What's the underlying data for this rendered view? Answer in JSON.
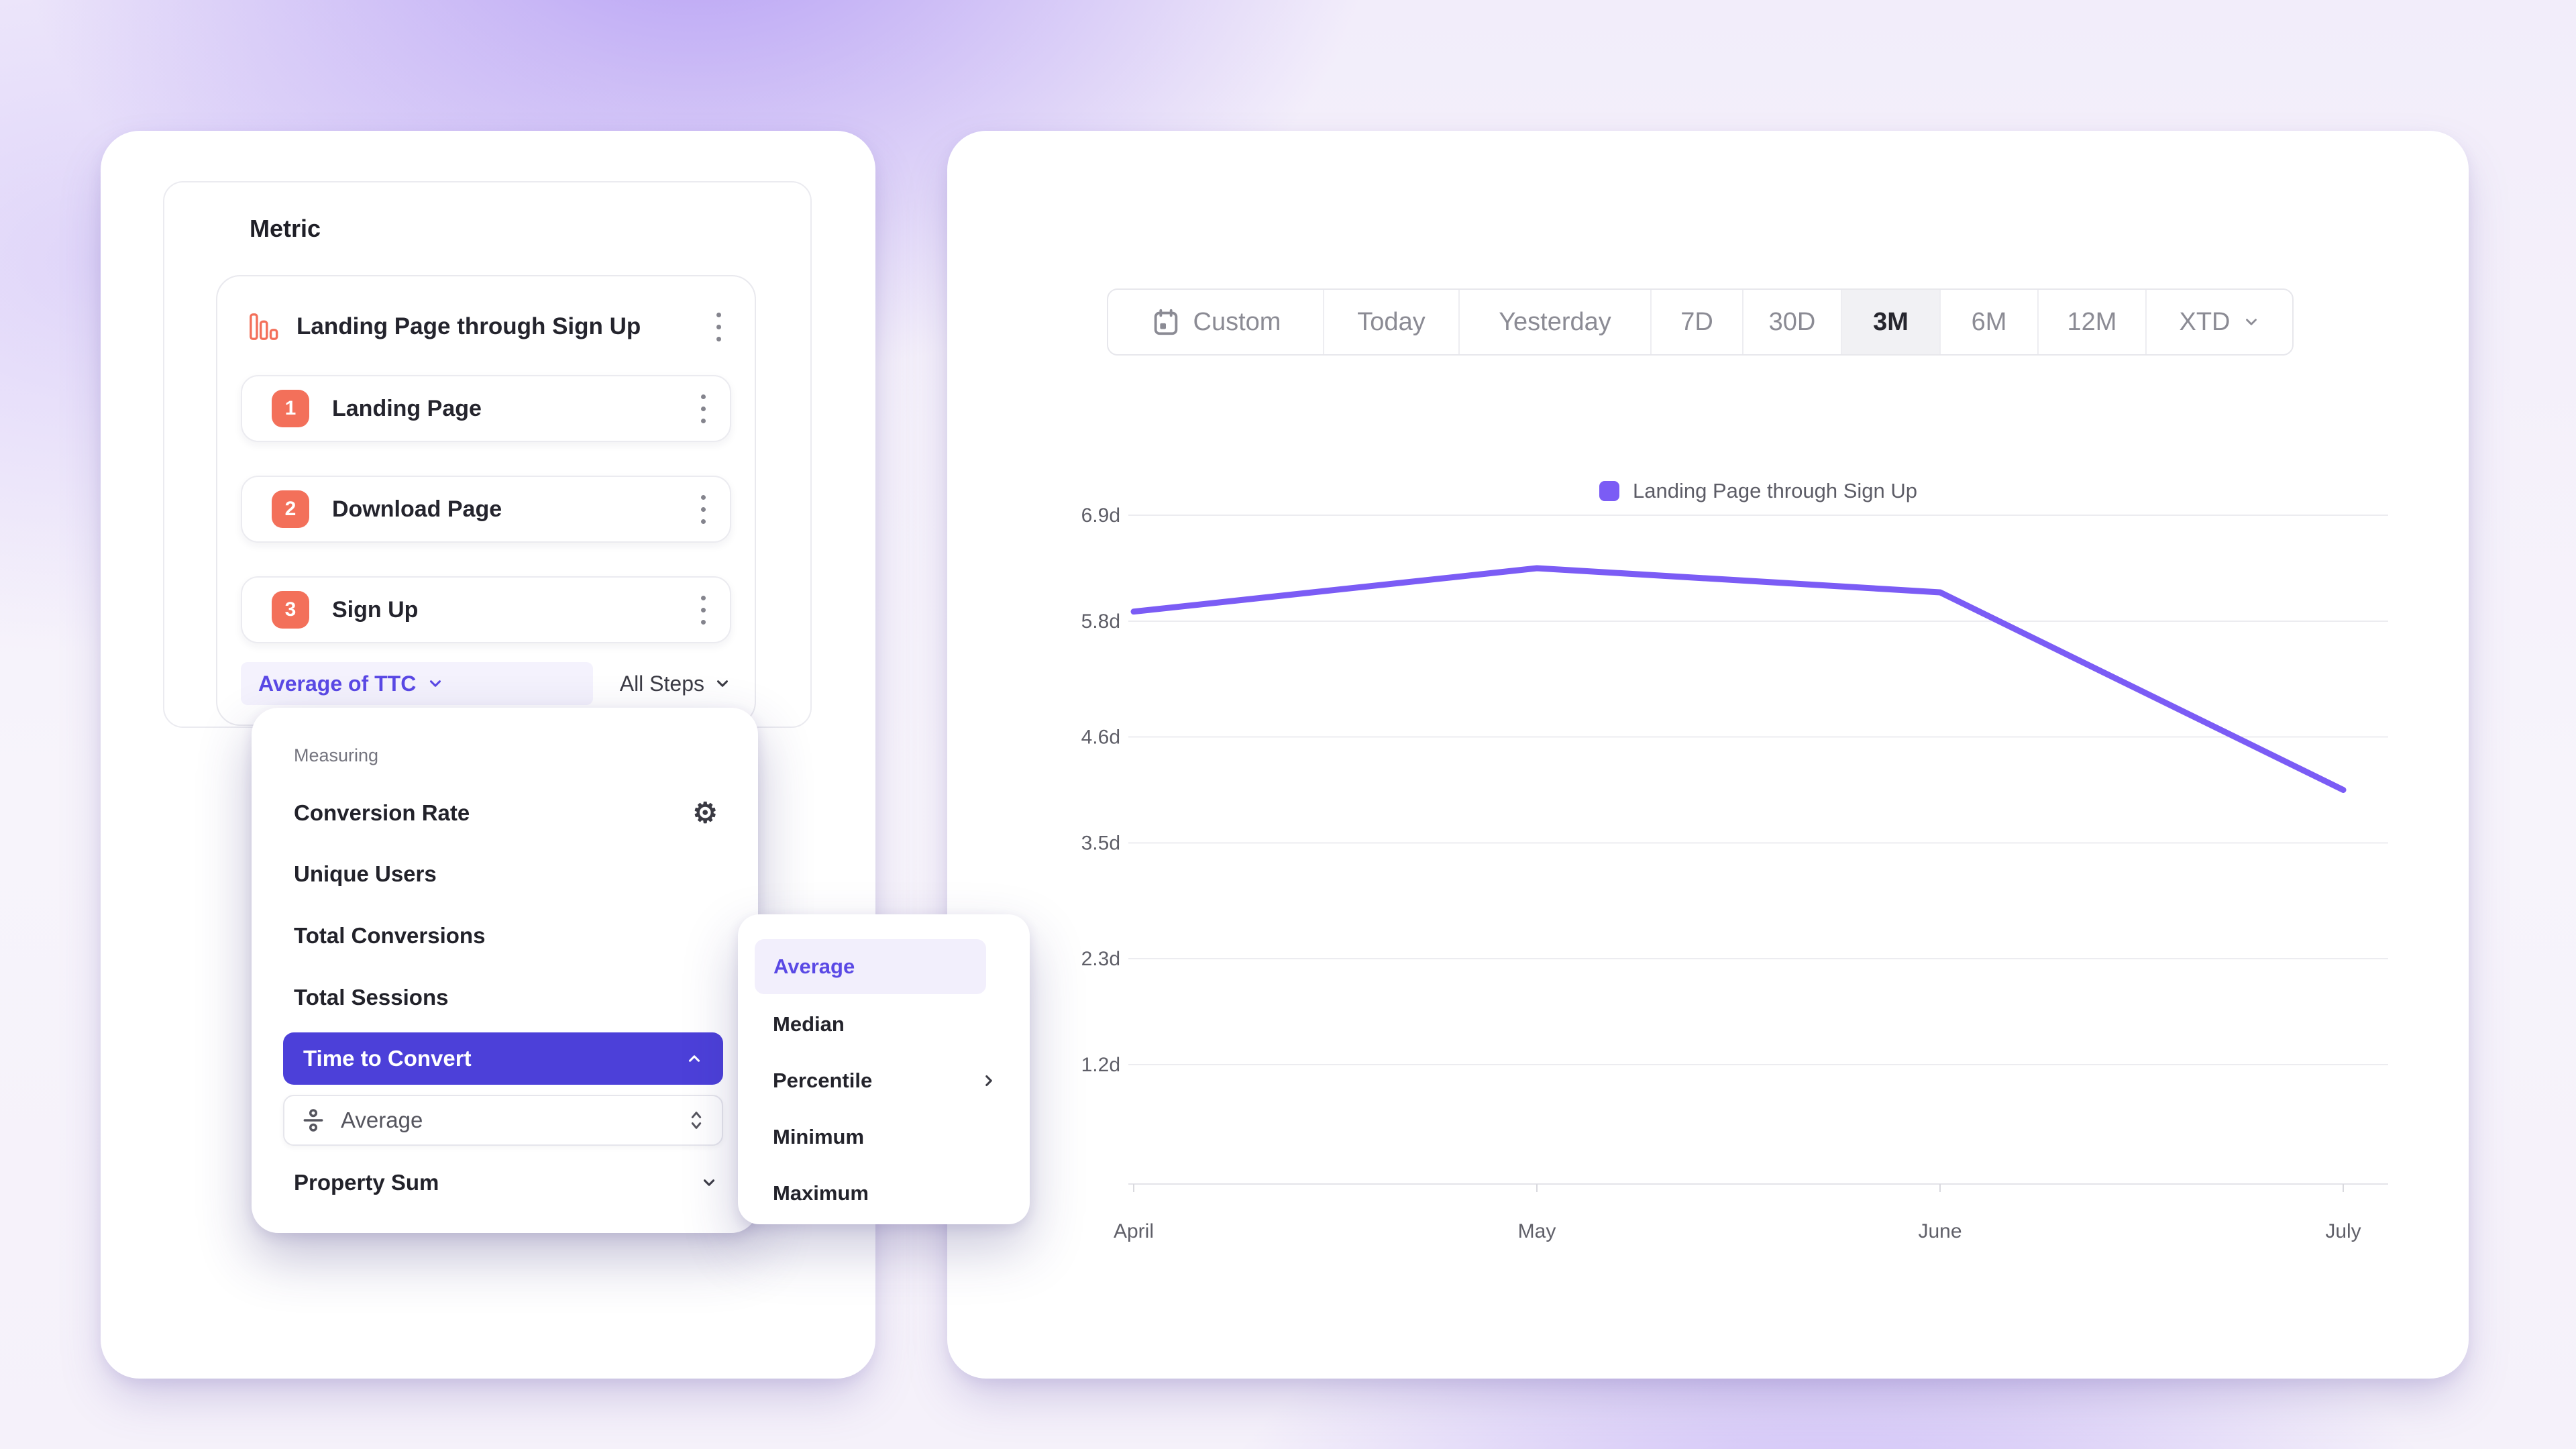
{
  "metric_panel": {
    "title": "Metric",
    "funnel": {
      "title": "Landing Page through Sign Up",
      "steps": [
        {
          "number": "1",
          "label": "Landing Page"
        },
        {
          "number": "2",
          "label": "Download Page"
        },
        {
          "number": "3",
          "label": "Sign Up"
        }
      ],
      "measurement_label": "Average of TTC",
      "scope_label": "All Steps"
    }
  },
  "measuring_menu": {
    "section_label": "Measuring",
    "items": [
      "Conversion Rate",
      "Unique Users",
      "Total Conversions",
      "Total Sessions",
      "Time to Convert",
      "Property Sum"
    ],
    "selected_item": "Time to Convert",
    "ttc_aggregation_value": "Average"
  },
  "aggregation_submenu": {
    "items": [
      "Average",
      "Median",
      "Percentile",
      "Minimum",
      "Maximum"
    ],
    "selected_item": "Average"
  },
  "date_range": {
    "options": [
      "Custom",
      "Today",
      "Yesterday",
      "7D",
      "30D",
      "3M",
      "6M",
      "12M",
      "XTD"
    ],
    "selected": "3M"
  },
  "icons": {
    "gear": "⚙"
  },
  "colors": {
    "accent_purple": "#5a49e5",
    "accent_purple_deep": "#4c40d9",
    "line_purple": "#7b5cf5",
    "step_orange": "#f3705a",
    "selected_pill_bg": "#f2effc",
    "date_selected_bg": "#f1f1f4"
  },
  "chart_data": {
    "type": "line",
    "title": "",
    "legend": [
      {
        "label": "Landing Page through Sign Up",
        "color": "#7b5cf5"
      }
    ],
    "x": [
      "April",
      "May",
      "June",
      "July"
    ],
    "series": [
      {
        "name": "Landing Page through Sign Up",
        "values": [
          5.9,
          6.35,
          6.1,
          4.05
        ]
      }
    ],
    "y_ticks": [
      "6.9d",
      "5.8d",
      "4.6d",
      "3.5d",
      "2.3d",
      "1.2d"
    ],
    "y_tick_values": [
      6.9,
      5.8,
      4.6,
      3.5,
      2.3,
      1.2
    ],
    "unit": "days",
    "grid": "horizontal",
    "legend_position": "top"
  }
}
